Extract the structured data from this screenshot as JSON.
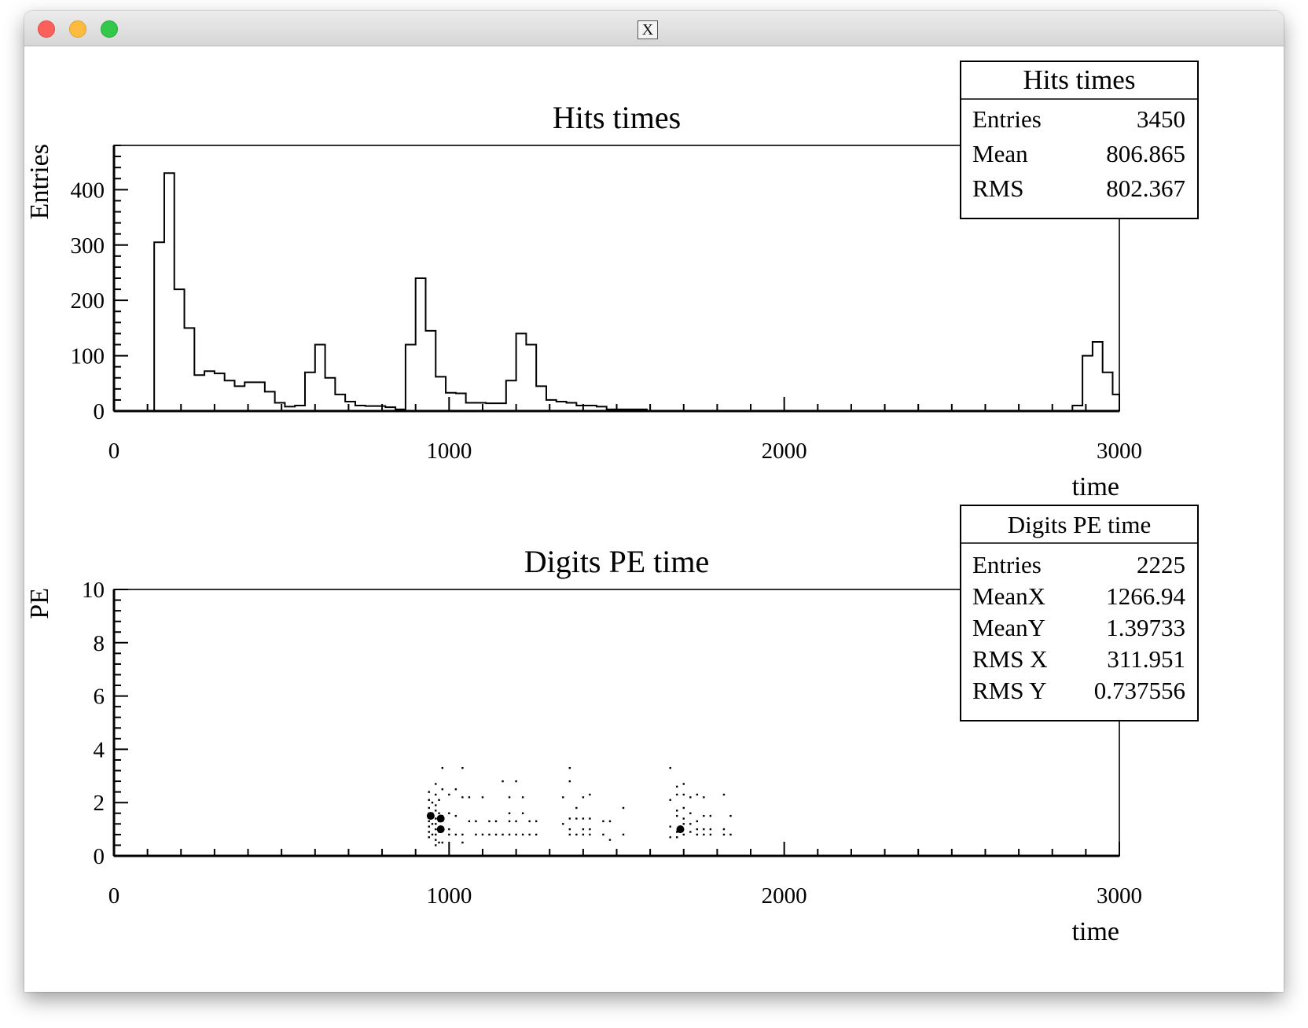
{
  "window": {
    "title_icon": "X"
  },
  "chart_data": [
    {
      "type": "bar",
      "histogram": true,
      "title": "Hits times",
      "xlabel": "time",
      "ylabel": "Entries",
      "xlim": [
        0,
        3000
      ],
      "ylim": [
        0,
        480
      ],
      "xticks": [
        "0",
        "1000",
        "2000",
        "3000"
      ],
      "yticks": [
        "0",
        "100",
        "200",
        "300",
        "400"
      ],
      "bins": [
        [
          120,
          150,
          305
        ],
        [
          150,
          180,
          430
        ],
        [
          180,
          210,
          220
        ],
        [
          210,
          240,
          150
        ],
        [
          240,
          270,
          65
        ],
        [
          270,
          300,
          72
        ],
        [
          300,
          330,
          68
        ],
        [
          330,
          360,
          55
        ],
        [
          360,
          390,
          45
        ],
        [
          390,
          420,
          52
        ],
        [
          420,
          450,
          52
        ],
        [
          450,
          480,
          35
        ],
        [
          480,
          510,
          15
        ],
        [
          510,
          540,
          8
        ],
        [
          540,
          570,
          10
        ],
        [
          570,
          600,
          70
        ],
        [
          600,
          630,
          120
        ],
        [
          630,
          660,
          60
        ],
        [
          660,
          690,
          30
        ],
        [
          690,
          720,
          17
        ],
        [
          720,
          750,
          10
        ],
        [
          750,
          780,
          9
        ],
        [
          780,
          810,
          9
        ],
        [
          810,
          840,
          7
        ],
        [
          840,
          870,
          3
        ],
        [
          870,
          900,
          120
        ],
        [
          900,
          930,
          240
        ],
        [
          930,
          960,
          145
        ],
        [
          960,
          990,
          62
        ],
        [
          990,
          1020,
          33
        ],
        [
          1020,
          1050,
          32
        ],
        [
          1050,
          1080,
          15
        ],
        [
          1080,
          1110,
          15
        ],
        [
          1110,
          1140,
          14
        ],
        [
          1140,
          1170,
          14
        ],
        [
          1170,
          1200,
          55
        ],
        [
          1200,
          1230,
          140
        ],
        [
          1230,
          1260,
          120
        ],
        [
          1260,
          1290,
          45
        ],
        [
          1290,
          1320,
          20
        ],
        [
          1320,
          1350,
          17
        ],
        [
          1350,
          1380,
          15
        ],
        [
          1380,
          1410,
          10
        ],
        [
          1410,
          1440,
          10
        ],
        [
          1440,
          1470,
          8
        ],
        [
          1470,
          1500,
          3
        ],
        [
          1500,
          1530,
          3
        ],
        [
          1530,
          1560,
          3
        ],
        [
          1560,
          1590,
          3
        ],
        [
          2860,
          2890,
          10
        ],
        [
          2890,
          2920,
          100
        ],
        [
          2920,
          2950,
          125
        ],
        [
          2950,
          2980,
          70
        ],
        [
          2980,
          3000,
          30
        ]
      ],
      "stats": {
        "name": "Hits times",
        "rows": [
          {
            "label": "Entries",
            "value": "3450"
          },
          {
            "label": "Mean",
            "value": "806.865"
          },
          {
            "label": "RMS",
            "value": "802.367"
          }
        ]
      }
    },
    {
      "type": "scatter",
      "title": "Digits PE time",
      "xlabel": "time",
      "ylabel": "PE",
      "xlim": [
        0,
        3000
      ],
      "ylim": [
        0,
        10
      ],
      "xticks": [
        "0",
        "1000",
        "2000",
        "3000"
      ],
      "yticks": [
        "0",
        "2",
        "4",
        "6",
        "8",
        "10"
      ],
      "points": [
        [
          940,
          2.1
        ],
        [
          940,
          1.8
        ],
        [
          940,
          1.6
        ],
        [
          940,
          1.3
        ],
        [
          940,
          1.1
        ],
        [
          940,
          0.9
        ],
        [
          940,
          0.7
        ],
        [
          940,
          2.4
        ],
        [
          950,
          1.5
        ],
        [
          950,
          1.2
        ],
        [
          950,
          0.8
        ],
        [
          950,
          2.0
        ],
        [
          950,
          1.6
        ],
        [
          960,
          2.3
        ],
        [
          960,
          1.9
        ],
        [
          960,
          1.7
        ],
        [
          960,
          1.4
        ],
        [
          960,
          1.2
        ],
        [
          960,
          1.0
        ],
        [
          960,
          0.8
        ],
        [
          960,
          0.6
        ],
        [
          960,
          0.4
        ],
        [
          960,
          2.7
        ],
        [
          970,
          1.3
        ],
        [
          970,
          0.9
        ],
        [
          970,
          0.5
        ],
        [
          970,
          2.1
        ],
        [
          970,
          1.6
        ],
        [
          980,
          2.5
        ],
        [
          980,
          1.5
        ],
        [
          980,
          1.0
        ],
        [
          980,
          0.5
        ],
        [
          980,
          3.3
        ],
        [
          1000,
          1.0
        ],
        [
          1000,
          0.8
        ],
        [
          1000,
          2.3
        ],
        [
          1000,
          1.6
        ],
        [
          1020,
          1.5
        ],
        [
          1020,
          0.8
        ],
        [
          1020,
          2.5
        ],
        [
          1040,
          2.2
        ],
        [
          1040,
          0.8
        ],
        [
          1040,
          0.5
        ],
        [
          1040,
          3.3
        ],
        [
          1060,
          2.2
        ],
        [
          1060,
          1.3
        ],
        [
          1080,
          0.8
        ],
        [
          1080,
          1.3
        ],
        [
          1100,
          2.2
        ],
        [
          1100,
          0.8
        ],
        [
          1120,
          1.3
        ],
        [
          1120,
          0.8
        ],
        [
          1140,
          1.3
        ],
        [
          1140,
          0.8
        ],
        [
          1160,
          2.8
        ],
        [
          1160,
          0.8
        ],
        [
          1180,
          2.2
        ],
        [
          1180,
          1.6
        ],
        [
          1180,
          1.3
        ],
        [
          1180,
          0.8
        ],
        [
          1200,
          2.8
        ],
        [
          1200,
          1.3
        ],
        [
          1200,
          0.8
        ],
        [
          1220,
          2.2
        ],
        [
          1220,
          1.6
        ],
        [
          1220,
          0.8
        ],
        [
          1240,
          1.3
        ],
        [
          1240,
          0.8
        ],
        [
          1260,
          1.3
        ],
        [
          1260,
          0.8
        ],
        [
          1340,
          2.2
        ],
        [
          1340,
          1.2
        ],
        [
          1360,
          3.3
        ],
        [
          1360,
          1.4
        ],
        [
          1360,
          1.0
        ],
        [
          1360,
          0.8
        ],
        [
          1360,
          2.8
        ],
        [
          1380,
          1.4
        ],
        [
          1380,
          0.8
        ],
        [
          1380,
          1.8
        ],
        [
          1400,
          2.2
        ],
        [
          1400,
          1.4
        ],
        [
          1400,
          1.0
        ],
        [
          1400,
          0.8
        ],
        [
          1420,
          2.3
        ],
        [
          1420,
          1.4
        ],
        [
          1420,
          1.0
        ],
        [
          1420,
          0.8
        ],
        [
          1460,
          1.3
        ],
        [
          1460,
          0.8
        ],
        [
          1480,
          1.3
        ],
        [
          1480,
          0.6
        ],
        [
          1520,
          1.8
        ],
        [
          1520,
          0.8
        ],
        [
          1660,
          2.1
        ],
        [
          1660,
          1.1
        ],
        [
          1660,
          0.7
        ],
        [
          1660,
          3.3
        ],
        [
          1680,
          2.6
        ],
        [
          1680,
          2.3
        ],
        [
          1680,
          1.7
        ],
        [
          1680,
          1.5
        ],
        [
          1680,
          0.9
        ],
        [
          1680,
          0.7
        ],
        [
          1700,
          2.7
        ],
        [
          1700,
          2.3
        ],
        [
          1700,
          1.8
        ],
        [
          1700,
          1.4
        ],
        [
          1700,
          1.2
        ],
        [
          1700,
          0.8
        ],
        [
          1720,
          2.2
        ],
        [
          1720,
          1.6
        ],
        [
          1720,
          1.2
        ],
        [
          1720,
          0.9
        ],
        [
          1740,
          2.3
        ],
        [
          1740,
          1.3
        ],
        [
          1740,
          1.0
        ],
        [
          1740,
          0.8
        ],
        [
          1760,
          2.2
        ],
        [
          1760,
          1.5
        ],
        [
          1760,
          1.0
        ],
        [
          1760,
          0.8
        ],
        [
          1780,
          1.5
        ],
        [
          1780,
          1.0
        ],
        [
          1780,
          0.8
        ],
        [
          1820,
          2.3
        ],
        [
          1820,
          1.0
        ],
        [
          1820,
          0.8
        ],
        [
          1840,
          1.5
        ],
        [
          1840,
          0.8
        ]
      ],
      "heavy_points": [
        [
          945,
          1.5
        ],
        [
          975,
          1.4
        ],
        [
          975,
          1.0
        ],
        [
          1690,
          1.0
        ]
      ],
      "stats": {
        "name": "Digits PE time",
        "rows": [
          {
            "label": "Entries",
            "value": "2225"
          },
          {
            "label": "MeanX",
            "value": "1266.94"
          },
          {
            "label": "MeanY",
            "value": "1.39733"
          },
          {
            "label": "RMS X",
            "value": "311.951"
          },
          {
            "label": "RMS Y",
            "value": "0.737556"
          }
        ]
      }
    }
  ]
}
